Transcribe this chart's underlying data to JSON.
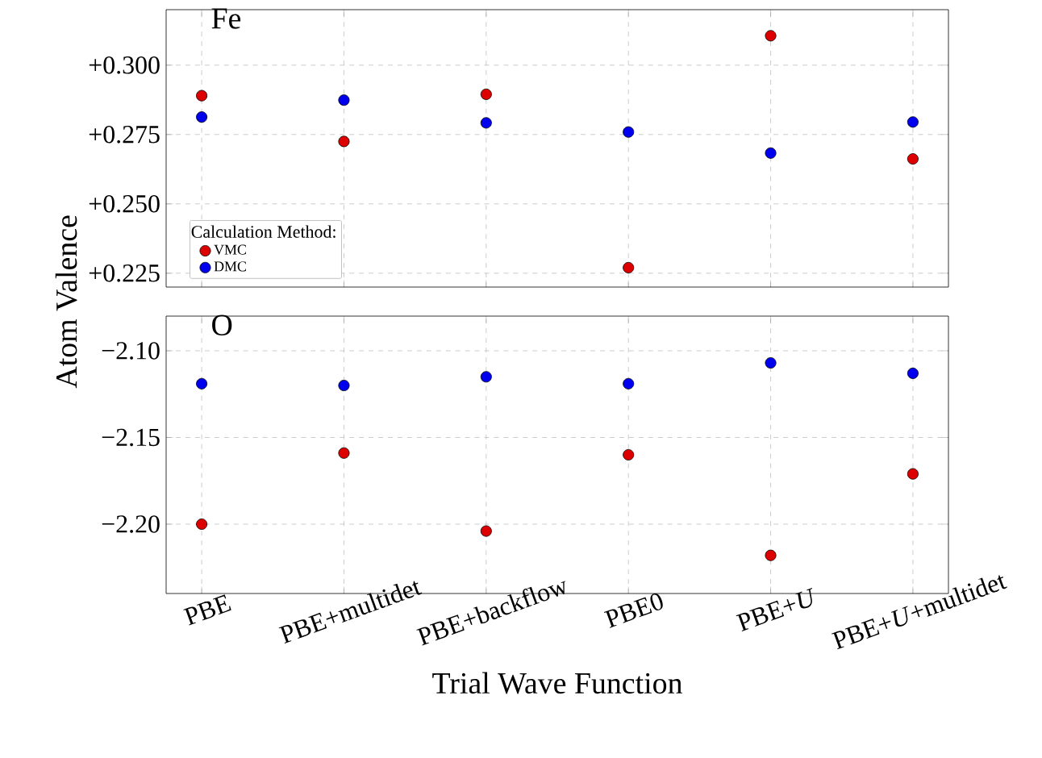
{
  "chart_data": [
    {
      "type": "scatter",
      "title": "Fe",
      "ylabel": "Atom Valence",
      "categories": [
        null,
        null,
        null,
        null,
        null,
        null
      ],
      "series": [
        {
          "name": "VMC",
          "color": "#dd0000",
          "values": [
            0.289,
            0.2725,
            0.2895,
            0.227,
            0.3106,
            0.2662
          ]
        },
        {
          "name": "DMC",
          "color": "#0000ee",
          "values": [
            0.2813,
            0.2874,
            0.2792,
            0.2759,
            0.2683,
            0.2795
          ]
        }
      ],
      "ylim": [
        0.22,
        0.32
      ],
      "yticks": [
        {
          "value": 0.225,
          "label": "+0.225"
        },
        {
          "value": 0.25,
          "label": "+0.250"
        },
        {
          "value": 0.275,
          "label": "+0.275"
        },
        {
          "value": 0.3,
          "label": "+0.300"
        }
      ],
      "grid": true,
      "marker": "circle",
      "legend": "bottom left",
      "legend_title": "Calculation Method:",
      "tick_labels": "y"
    },
    {
      "type": "scatter",
      "title": "O",
      "xlabel": "Trial Wave Function",
      "categories": [
        "PBE",
        "PBE+multidet",
        "PBE+backflow",
        "PBE0",
        "PBE+*U*",
        "PBE+*U*+multidet"
      ],
      "series": [
        {
          "color": "#dd0000",
          "values": [
            -2.2,
            -2.159,
            -2.204,
            -2.16,
            -2.218,
            -2.171
          ]
        },
        {
          "color": "#0000ee",
          "values": [
            -2.119,
            -2.12,
            -2.115,
            -2.119,
            -2.107,
            -2.113
          ]
        }
      ],
      "ylim": [
        -2.24,
        -2.08
      ],
      "yticks": [
        {
          "value": -2.2,
          "label": "−2.20"
        },
        {
          "value": -2.15,
          "label": "−2.15"
        },
        {
          "value": -2.1,
          "label": "−2.10"
        }
      ],
      "grid": true,
      "marker": "circle"
    }
  ]
}
